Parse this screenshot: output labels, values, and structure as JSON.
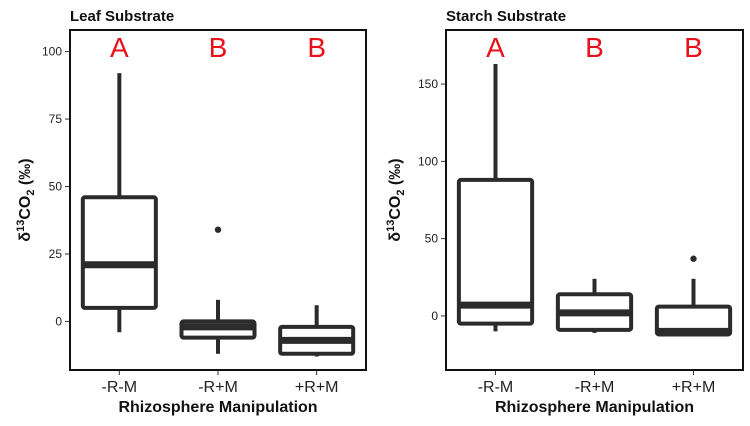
{
  "chart_data": [
    {
      "type": "box",
      "title": "Leaf Substrate",
      "xlabel": "Rhizosphere Manipulation",
      "ylabel": "δ13CO2 (‰)",
      "ylabel_parts": {
        "delta": "δ",
        "sup": "13",
        "co": "CO",
        "sub": "2",
        "unit": " (‰)"
      },
      "ylim": [
        -18,
        108
      ],
      "yticks": [
        0,
        25,
        50,
        75,
        100
      ],
      "ytick_labels": [
        "0",
        "25",
        "50",
        "75",
        "100"
      ],
      "categories": [
        "-R-M",
        "-R+M",
        "+R+M"
      ],
      "boxes": [
        {
          "min": -4,
          "q1": 5,
          "median": 21,
          "q3": 46,
          "max": 92,
          "outliers": []
        },
        {
          "min": -12,
          "q1": -6,
          "median": -2,
          "q3": 0,
          "max": 8,
          "outliers": [
            34
          ]
        },
        {
          "min": -13,
          "q1": -12,
          "median": -7,
          "q3": -2,
          "max": 6,
          "outliers": []
        }
      ],
      "letters": [
        "A",
        "B",
        "B"
      ],
      "grid": false
    },
    {
      "type": "box",
      "title": "Starch Substrate",
      "xlabel": "Rhizosphere Manipulation",
      "ylabel": "δ13CO2 (‰)",
      "ylabel_parts": {
        "delta": "δ",
        "sup": "13",
        "co": "CO",
        "sub": "2",
        "unit": " (‰)"
      },
      "ylim": [
        -35,
        185
      ],
      "yticks": [
        0,
        50,
        100,
        150
      ],
      "ytick_labels": [
        "0",
        "50",
        "100",
        "150"
      ],
      "categories": [
        "-R-M",
        "-R+M",
        "+R+M"
      ],
      "boxes": [
        {
          "min": -10,
          "q1": -5,
          "median": 7,
          "q3": 88,
          "max": 163,
          "outliers": []
        },
        {
          "min": -11,
          "q1": -9,
          "median": 2,
          "q3": 14,
          "max": 24,
          "outliers": []
        },
        {
          "min": -12,
          "q1": -12,
          "median": -10,
          "q3": 6,
          "max": 24,
          "outliers": [
            37
          ]
        }
      ],
      "letters": [
        "A",
        "B",
        "B"
      ],
      "grid": false
    }
  ]
}
